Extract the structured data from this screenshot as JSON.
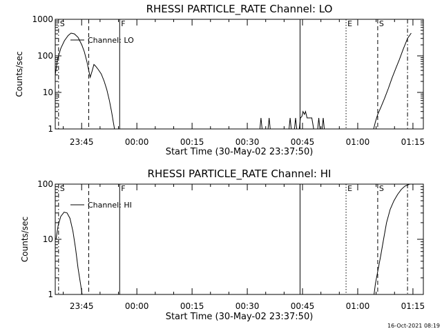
{
  "colors": {
    "background": "#ffffff",
    "ink": "#000000"
  },
  "footer": {
    "timestamp": "16-Oct-2021 08:19"
  },
  "chart_data": [
    {
      "type": "line",
      "title": "RHESSI PARTICLE_RATE Channel: LO",
      "xlabel": "Start Time (30-May-02 23:37:50)",
      "ylabel": "Counts/sec",
      "x_unit": "minutes since 23:37:50",
      "xlim": [
        0,
        100
      ],
      "ylim": [
        1,
        1000
      ],
      "y_scale": "log",
      "y_ticks": [
        {
          "value": 1,
          "label": "1"
        },
        {
          "value": 10,
          "label": "10"
        },
        {
          "value": 100,
          "label": "100"
        },
        {
          "value": 1000,
          "label": "1000"
        }
      ],
      "x_ticks": [
        {
          "value": 7.17,
          "label": "23:45"
        },
        {
          "value": 22.17,
          "label": "00:00"
        },
        {
          "value": 37.17,
          "label": "00:15"
        },
        {
          "value": 52.17,
          "label": "00:30"
        },
        {
          "value": 67.17,
          "label": "00:45"
        },
        {
          "value": 82.17,
          "label": "01:00"
        },
        {
          "value": 97.17,
          "label": "01:15"
        }
      ],
      "legend": {
        "label": "Channel: LO",
        "position": "top-left"
      },
      "markers": [
        {
          "x": 0.9,
          "label": "S",
          "style": "dash-dot"
        },
        {
          "x": 9.1,
          "label": "",
          "style": "dashed"
        },
        {
          "x": 17.5,
          "label": "F",
          "style": "solid"
        },
        {
          "x": 66.5,
          "label": "",
          "style": "solid"
        },
        {
          "x": 79.0,
          "label": "E",
          "style": "dotted"
        },
        {
          "x": 87.6,
          "label": "S",
          "style": "dashed"
        },
        {
          "x": 95.7,
          "label": "",
          "style": "dash-dot"
        }
      ],
      "series": [
        {
          "points": [
            [
              0,
              30
            ],
            [
              0.6,
              80
            ],
            [
              1.5,
              160
            ],
            [
              2.5,
              260
            ],
            [
              3.5,
              360
            ],
            [
              4.3,
              420
            ],
            [
              5.2,
              400
            ],
            [
              6.2,
              320
            ],
            [
              7.2,
              200
            ],
            [
              7.9,
              130
            ],
            [
              8.6,
              70
            ],
            [
              9.1,
              40
            ],
            [
              9.5,
              26
            ],
            [
              10,
              38
            ],
            [
              10.5,
              58
            ],
            [
              11,
              52
            ],
            [
              11.7,
              42
            ],
            [
              12.5,
              32
            ],
            [
              13.3,
              20
            ],
            [
              14,
              12
            ],
            [
              14.7,
              6
            ],
            [
              15.3,
              3
            ],
            [
              15.8,
              1.5
            ],
            [
              16.1,
              1
            ]
          ]
        },
        {
          "points": [
            [
              55.6,
              1
            ],
            [
              55.9,
              2
            ],
            [
              56.2,
              1
            ]
          ]
        },
        {
          "points": [
            [
              57.8,
              1
            ],
            [
              58.1,
              2
            ],
            [
              58.4,
              1
            ]
          ]
        },
        {
          "points": [
            [
              63.5,
              1
            ],
            [
              63.8,
              2
            ],
            [
              64.1,
              1
            ]
          ]
        },
        {
          "points": [
            [
              65,
              1
            ],
            [
              65.3,
              2
            ],
            [
              65.6,
              1
            ]
          ]
        },
        {
          "points": [
            [
              66.3,
              1
            ],
            [
              66.6,
              2
            ],
            [
              67,
              2.2
            ],
            [
              67.3,
              3
            ],
            [
              67.7,
              2.5
            ],
            [
              68,
              3
            ],
            [
              68.4,
              2
            ],
            [
              69.1,
              2
            ],
            [
              69.7,
              2
            ],
            [
              70.2,
              1
            ]
          ]
        },
        {
          "points": [
            [
              71.3,
              1
            ],
            [
              71.6,
              2
            ],
            [
              71.9,
              1
            ]
          ]
        },
        {
          "points": [
            [
              72.5,
              1
            ],
            [
              72.8,
              2
            ],
            [
              73.1,
              1
            ]
          ]
        },
        {
          "points": [
            [
              86.5,
              1
            ],
            [
              87,
              1.6
            ],
            [
              87.6,
              2.5
            ],
            [
              88.5,
              4
            ],
            [
              89.5,
              7
            ],
            [
              90.5,
              13
            ],
            [
              91.5,
              25
            ],
            [
              92.5,
              45
            ],
            [
              93.5,
              80
            ],
            [
              94.5,
              150
            ],
            [
              95.7,
              300
            ],
            [
              96.7,
              420
            ]
          ]
        }
      ]
    },
    {
      "type": "line",
      "title": "RHESSI PARTICLE_RATE Channel: HI",
      "xlabel": "Start Time (30-May-02 23:37:50)",
      "ylabel": "Counts/sec",
      "x_unit": "minutes since 23:37:50",
      "xlim": [
        0,
        100
      ],
      "ylim": [
        1,
        100
      ],
      "y_scale": "log",
      "y_ticks": [
        {
          "value": 1,
          "label": "1"
        },
        {
          "value": 10,
          "label": "10"
        },
        {
          "value": 100,
          "label": "100"
        }
      ],
      "x_ticks": [
        {
          "value": 7.17,
          "label": "23:45"
        },
        {
          "value": 22.17,
          "label": "00:00"
        },
        {
          "value": 37.17,
          "label": "00:15"
        },
        {
          "value": 52.17,
          "label": "00:30"
        },
        {
          "value": 67.17,
          "label": "00:45"
        },
        {
          "value": 82.17,
          "label": "01:00"
        },
        {
          "value": 97.17,
          "label": "01:15"
        }
      ],
      "legend": {
        "label": "Channel: HI",
        "position": "top-left"
      },
      "markers": [
        {
          "x": 0.9,
          "label": "S",
          "style": "dash-dot"
        },
        {
          "x": 9.1,
          "label": "",
          "style": "dashed"
        },
        {
          "x": 17.5,
          "label": "F",
          "style": "solid"
        },
        {
          "x": 66.5,
          "label": "",
          "style": "solid"
        },
        {
          "x": 79.0,
          "label": "E",
          "style": "dotted"
        },
        {
          "x": 87.6,
          "label": "S",
          "style": "dashed"
        },
        {
          "x": 95.7,
          "label": "",
          "style": "dash-dot"
        }
      ],
      "series": [
        {
          "points": [
            [
              0.2,
              10
            ],
            [
              0.8,
              18
            ],
            [
              1.5,
              26
            ],
            [
              2.4,
              31
            ],
            [
              3.2,
              30
            ],
            [
              4,
              24
            ],
            [
              4.8,
              14
            ],
            [
              5.5,
              7
            ],
            [
              6.2,
              3
            ],
            [
              6.9,
              1.5
            ],
            [
              7.3,
              1
            ]
          ]
        },
        {
          "points": [
            [
              86.6,
              1
            ],
            [
              87,
              1.6
            ],
            [
              87.6,
              2.6
            ],
            [
              88.4,
              5
            ],
            [
              89.2,
              10
            ],
            [
              90,
              20
            ],
            [
              91,
              35
            ],
            [
              92,
              50
            ],
            [
              93,
              65
            ],
            [
              94,
              80
            ],
            [
              95,
              92
            ],
            [
              96.3,
              100
            ]
          ]
        }
      ]
    }
  ]
}
